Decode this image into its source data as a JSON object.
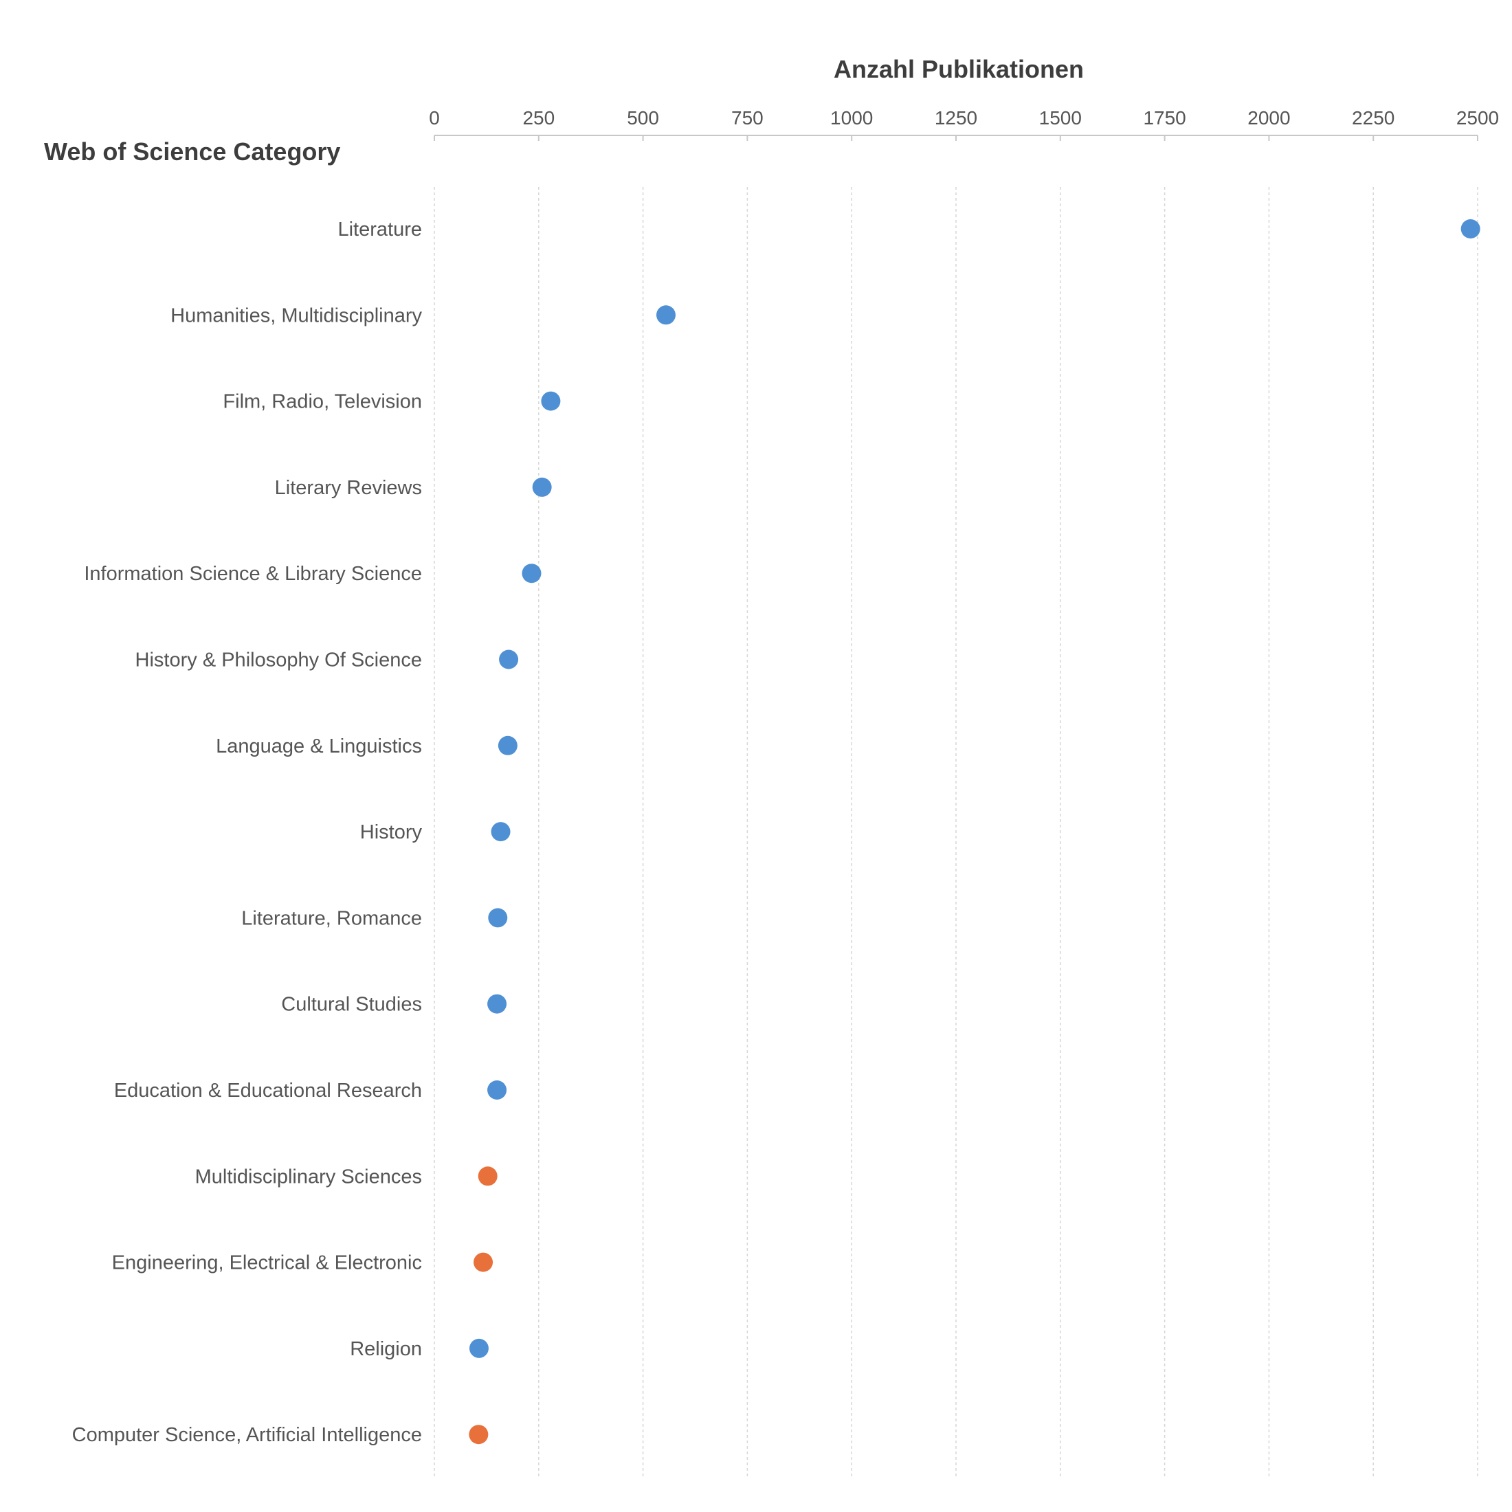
{
  "chart_data": {
    "type": "scatter",
    "xlabel": "Anzahl Publikationen",
    "ylabel": "Web of Science Category",
    "xlim": [
      0,
      2500
    ],
    "xticks": [
      0,
      250,
      500,
      750,
      1000,
      1250,
      1500,
      1750,
      2000,
      2250,
      2500
    ],
    "grid": true,
    "orientation": "horizontal-dot",
    "categories": [
      "Literature",
      "Humanities, Multidisciplinary",
      "Film, Radio, Television",
      "Literary Reviews",
      "Information Science & Library Science",
      "History & Philosophy Of Science",
      "Language & Linguistics",
      "History",
      "Literature, Romance",
      "Cultural Studies",
      "Education & Educational Research",
      "Multidisciplinary Sciences",
      "Engineering, Electrical & Electronic",
      "Religion",
      "Computer Science, Artificial Intelligence"
    ],
    "values": [
      2483,
      555,
      279,
      258,
      233,
      178,
      176,
      159,
      152,
      150,
      150,
      128,
      117,
      107,
      106
    ],
    "point_colors": [
      "#4f90d4",
      "#4f90d4",
      "#4f90d4",
      "#4f90d4",
      "#4f90d4",
      "#4f90d4",
      "#4f90d4",
      "#4f90d4",
      "#4f90d4",
      "#4f90d4",
      "#4f90d4",
      "#e8703a",
      "#e8703a",
      "#4f90d4",
      "#e8703a"
    ],
    "colors": {
      "primary": "#4f90d4",
      "highlight": "#e8703a",
      "grid": "#d6d6d6",
      "axis": "#c8c8c8",
      "text": "#555555"
    }
  }
}
